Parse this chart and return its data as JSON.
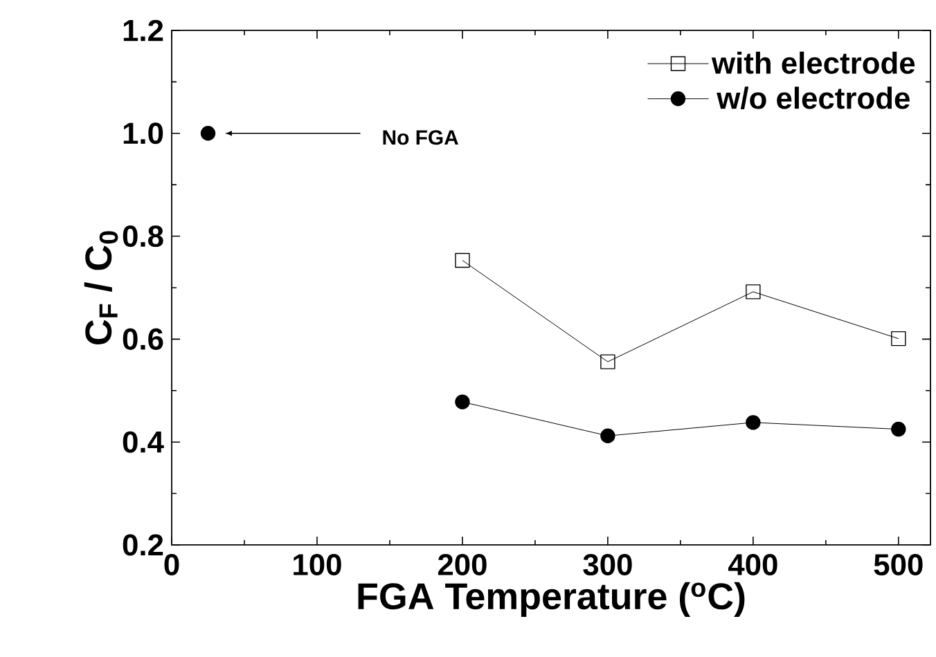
{
  "chart_data": {
    "type": "line",
    "xlabel": "FGA Temperature ($^{o}$C)",
    "ylabel": "C$_{F}$ / C$_{0}$",
    "x": [
      200,
      300,
      400,
      500
    ],
    "series": [
      {
        "name": "with electrode",
        "color": "#000000",
        "marker": "square",
        "values": [
          0.753,
          0.556,
          0.692,
          0.601
        ]
      },
      {
        "name": "w/o electrode",
        "color": "#000000",
        "marker": "circle",
        "values": [
          0.478,
          0.412,
          0.438,
          0.425
        ]
      },
      {
        "type": "scatter",
        "color": "#000000",
        "marker": "circle",
        "x": [
          25
        ],
        "values": [
          1.0
        ]
      }
    ],
    "annotations": [
      "No FGA"
    ],
    "xlim": [
      0,
      522
    ],
    "ylim": [
      0.2,
      1.2
    ],
    "xticks": [
      0,
      100,
      200,
      300,
      400,
      500
    ],
    "yticks": [
      0.2,
      0.4,
      0.6,
      0.8,
      {
        "value": 1.0,
        "label": "1.0"
      },
      1.2
    ],
    "grid": false,
    "legend": "top right",
    "line_style": "solid"
  }
}
